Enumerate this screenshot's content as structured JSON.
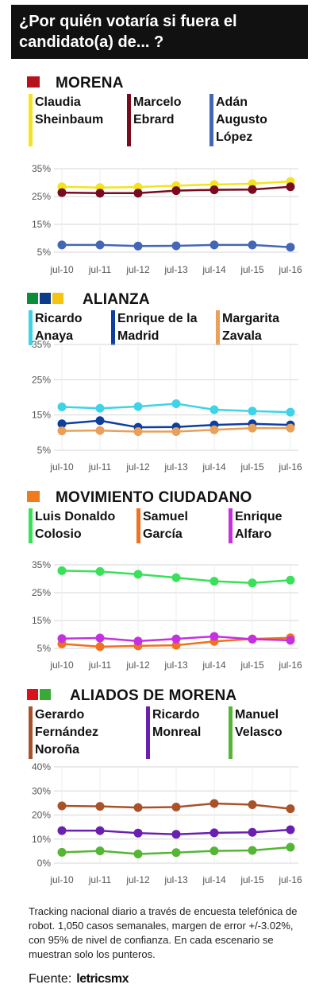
{
  "header": {
    "title": "¿Por quién votaría si fuera el candidato(a) de... ?"
  },
  "footer": {
    "note": "Tracking nacional diario a través de encuesta telefónica de robot. 1,050 casos semanales, margen de error +/-3.02%, con 95% de nivel de confianza. En cada escenario se muestran solo los punteros.",
    "source_label": "Fuente:",
    "source_brand": "letricsmx"
  },
  "chart_data": [
    {
      "type": "line",
      "title": "MORENA",
      "logos": [
        {
          "text": "MORENA",
          "color": "#b5121b"
        }
      ],
      "categories": [
        "jul-10",
        "jul-11",
        "jul-12",
        "jul-13",
        "jul-14",
        "jul-15",
        "jul-16"
      ],
      "y_ticks": [
        "35%",
        "25%",
        "15%",
        "5%"
      ],
      "ylim": [
        5,
        35
      ],
      "grid": true,
      "series": [
        {
          "name": "Claudia\nSheinbaum",
          "color": "#f2e420",
          "values": [
            28.5,
            28.2,
            28.4,
            28.9,
            29.3,
            29.6,
            30.4
          ]
        },
        {
          "name": "Marcelo\nEbrard",
          "color": "#7a0a1e",
          "values": [
            26.4,
            26.2,
            26.2,
            27.1,
            27.4,
            27.5,
            28.5
          ]
        },
        {
          "name": "Adán\nAugusto\nLópez",
          "color": "#4466b6",
          "values": [
            7.6,
            7.6,
            7.2,
            7.3,
            7.6,
            7.6,
            6.8
          ]
        }
      ]
    },
    {
      "type": "line",
      "title": "ALIANZA",
      "logos": [
        {
          "text": "PRI",
          "color": "#0a8d3a"
        },
        {
          "text": "PAN",
          "color": "#0b3c8c"
        },
        {
          "text": "PRD",
          "color": "#f3c511"
        }
      ],
      "categories": [
        "jul-10",
        "jul-11",
        "jul-12",
        "jul-13",
        "jul-14",
        "jul-15",
        "jul-16"
      ],
      "y_ticks": [
        "35%",
        "25%",
        "15%",
        "5%"
      ],
      "ylim": [
        5,
        35
      ],
      "grid": true,
      "series": [
        {
          "name": "Ricardo\nAnaya",
          "color": "#3fd3e8",
          "values": [
            17.3,
            16.9,
            17.4,
            18.2,
            16.5,
            16.1,
            15.8
          ]
        },
        {
          "name": "Enrique de la\nMadrid",
          "color": "#0d3f9e",
          "values": [
            12.5,
            13.4,
            11.5,
            11.6,
            12.2,
            12.5,
            12.2
          ]
        },
        {
          "name": "Margarita\nZavala",
          "color": "#e8a05a",
          "values": [
            10.5,
            10.6,
            10.3,
            10.3,
            10.8,
            11.3,
            11.3
          ]
        }
      ]
    },
    {
      "type": "line",
      "title": "MOVIMIENTO CIUDADANO",
      "logos": [
        {
          "text": "MC",
          "color": "#f07b1c"
        }
      ],
      "categories": [
        "jul-10",
        "jul-11",
        "jul-12",
        "jul-13",
        "jul-14",
        "jul-15",
        "jul-16"
      ],
      "y_ticks": [
        "35%",
        "25%",
        "15%",
        "5%"
      ],
      "ylim": [
        5,
        35
      ],
      "grid": true,
      "series": [
        {
          "name": "Luis Donaldo\nColosio",
          "color": "#39e05a",
          "values": [
            32.9,
            32.6,
            31.6,
            30.4,
            29.1,
            28.5,
            29.5
          ]
        },
        {
          "name": "Samuel\nGarcía",
          "color": "#f0711e",
          "values": [
            6.6,
            5.6,
            5.9,
            6.1,
            7.5,
            8.4,
            8.8
          ]
        },
        {
          "name": "Enrique\nAlfaro",
          "color": "#c531e0",
          "values": [
            8.5,
            8.7,
            7.6,
            8.4,
            9.3,
            8.3,
            7.9
          ]
        }
      ]
    },
    {
      "type": "line",
      "title": "ALIADOS DE MORENA",
      "logos": [
        {
          "text": "PT",
          "color": "#d8131b"
        },
        {
          "text": "VERDE",
          "color": "#3aa935"
        }
      ],
      "categories": [
        "jul-10",
        "jul-11",
        "jul-12",
        "jul-13",
        "jul-14",
        "jul-15",
        "jul-16"
      ],
      "y_ticks": [
        "40%",
        "30%",
        "20%",
        "10%",
        "0%"
      ],
      "ylim": [
        0,
        40
      ],
      "grid": true,
      "series": [
        {
          "name": "Gerardo\nFernández\nNoroña",
          "color": "#a9522a",
          "values": [
            23.8,
            23.6,
            23.1,
            23.3,
            24.8,
            24.3,
            22.6
          ]
        },
        {
          "name": "Ricardo\nMonreal",
          "color": "#6a1fb0",
          "values": [
            13.5,
            13.5,
            12.5,
            12.0,
            12.6,
            12.8,
            13.9
          ]
        },
        {
          "name": "Manuel\nVelasco",
          "color": "#55b535",
          "values": [
            4.5,
            5.1,
            3.8,
            4.4,
            5.1,
            5.3,
            6.6
          ]
        }
      ]
    }
  ]
}
